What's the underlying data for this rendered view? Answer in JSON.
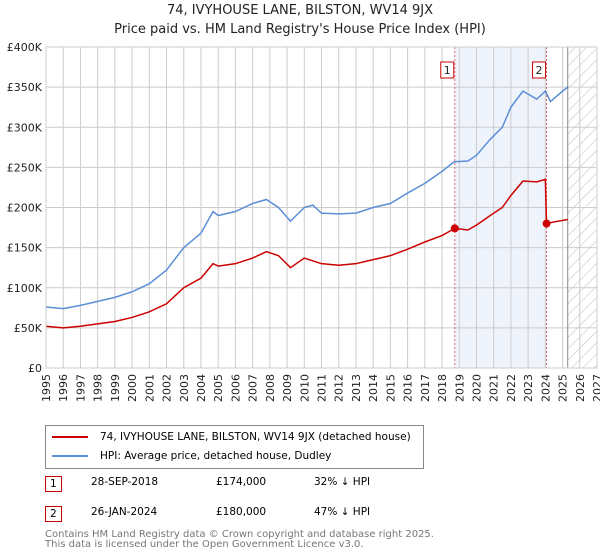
{
  "chart_data": {
    "type": "line",
    "title": "74, IVYHOUSE LANE, BILSTON, WV14 9JX",
    "subtitle": "Price paid vs. HM Land Registry's House Price Index (HPI)",
    "xlim": [
      1995,
      2027
    ],
    "ylim": [
      0,
      400000
    ],
    "y_ticks": [
      "£0",
      "£50K",
      "£100K",
      "£150K",
      "£200K",
      "£250K",
      "£300K",
      "£350K",
      "£400K"
    ],
    "x_ticks": [
      "1995",
      "1996",
      "1997",
      "1998",
      "1999",
      "2000",
      "2001",
      "2002",
      "2003",
      "2004",
      "2005",
      "2006",
      "2007",
      "2008",
      "2009",
      "2010",
      "2011",
      "2012",
      "2013",
      "2014",
      "2015",
      "2016",
      "2017",
      "2018",
      "2019",
      "2020",
      "2021",
      "2022",
      "2023",
      "2024",
      "2025",
      "2026",
      "2027"
    ],
    "series": [
      {
        "name": "74, IVYHOUSE LANE, BILSTON, WV14 9JX (detached house)",
        "color": "#cc0000",
        "x": [
          1995,
          1996,
          1997,
          1998,
          1999,
          2000,
          2001,
          2002,
          2003,
          2004,
          2004.7,
          2005,
          2006,
          2007,
          2007.8,
          2008.5,
          2009.2,
          2010,
          2011,
          2012,
          2013,
          2014,
          2015,
          2016,
          2017,
          2018,
          2018.74,
          2019.5,
          2020,
          2020.8,
          2021.5,
          2022,
          2022.7,
          2023.5,
          2024.0,
          2024.07,
          2024.5,
          2025.3
        ],
        "y": [
          52000,
          50000,
          52000,
          55000,
          58000,
          63000,
          70000,
          80000,
          100000,
          112000,
          130000,
          127000,
          130000,
          137000,
          145000,
          140000,
          125000,
          137000,
          130000,
          128000,
          130000,
          135000,
          140000,
          148000,
          157000,
          165000,
          174000,
          172000,
          178000,
          190000,
          200000,
          215000,
          233000,
          232000,
          235000,
          180000,
          182000,
          185000
        ]
      },
      {
        "name": "HPI: Average price, detached house, Dudley",
        "color": "#5b8fd6",
        "x": [
          1995,
          1996,
          1997,
          1998,
          1999,
          2000,
          2001,
          2002,
          2003,
          2004,
          2004.7,
          2005,
          2006,
          2007,
          2007.8,
          2008.5,
          2009.2,
          2010,
          2010.5,
          2011,
          2012,
          2013,
          2014,
          2015,
          2016,
          2017,
          2018,
          2018.7,
          2019.5,
          2020,
          2020.8,
          2021.5,
          2022,
          2022.7,
          2023.5,
          2024,
          2024.3,
          2025,
          2025.3
        ],
        "y": [
          76000,
          74000,
          78000,
          83000,
          88000,
          95000,
          105000,
          122000,
          150000,
          168000,
          195000,
          190000,
          195000,
          205000,
          210000,
          200000,
          183000,
          200000,
          203000,
          193000,
          192000,
          193000,
          200000,
          205000,
          218000,
          230000,
          245000,
          257000,
          258000,
          265000,
          285000,
          300000,
          325000,
          345000,
          335000,
          345000,
          332000,
          345000,
          350000
        ]
      }
    ],
    "sales": [
      {
        "label": "1",
        "x": 2018.74,
        "date": "28-SEP-2018",
        "price": "£174,000",
        "hpi": "32% ↓ HPI",
        "value": 174000
      },
      {
        "label": "2",
        "x": 2024.07,
        "date": "26-JAN-2024",
        "price": "£180,000",
        "hpi": "47% ↓ HPI",
        "value": 180000
      }
    ],
    "forecast_start": 2025.3
  },
  "footer": [
    "Contains HM Land Registry data © Crown copyright and database right 2025.",
    "This data is licensed under the Open Government Licence v3.0."
  ]
}
